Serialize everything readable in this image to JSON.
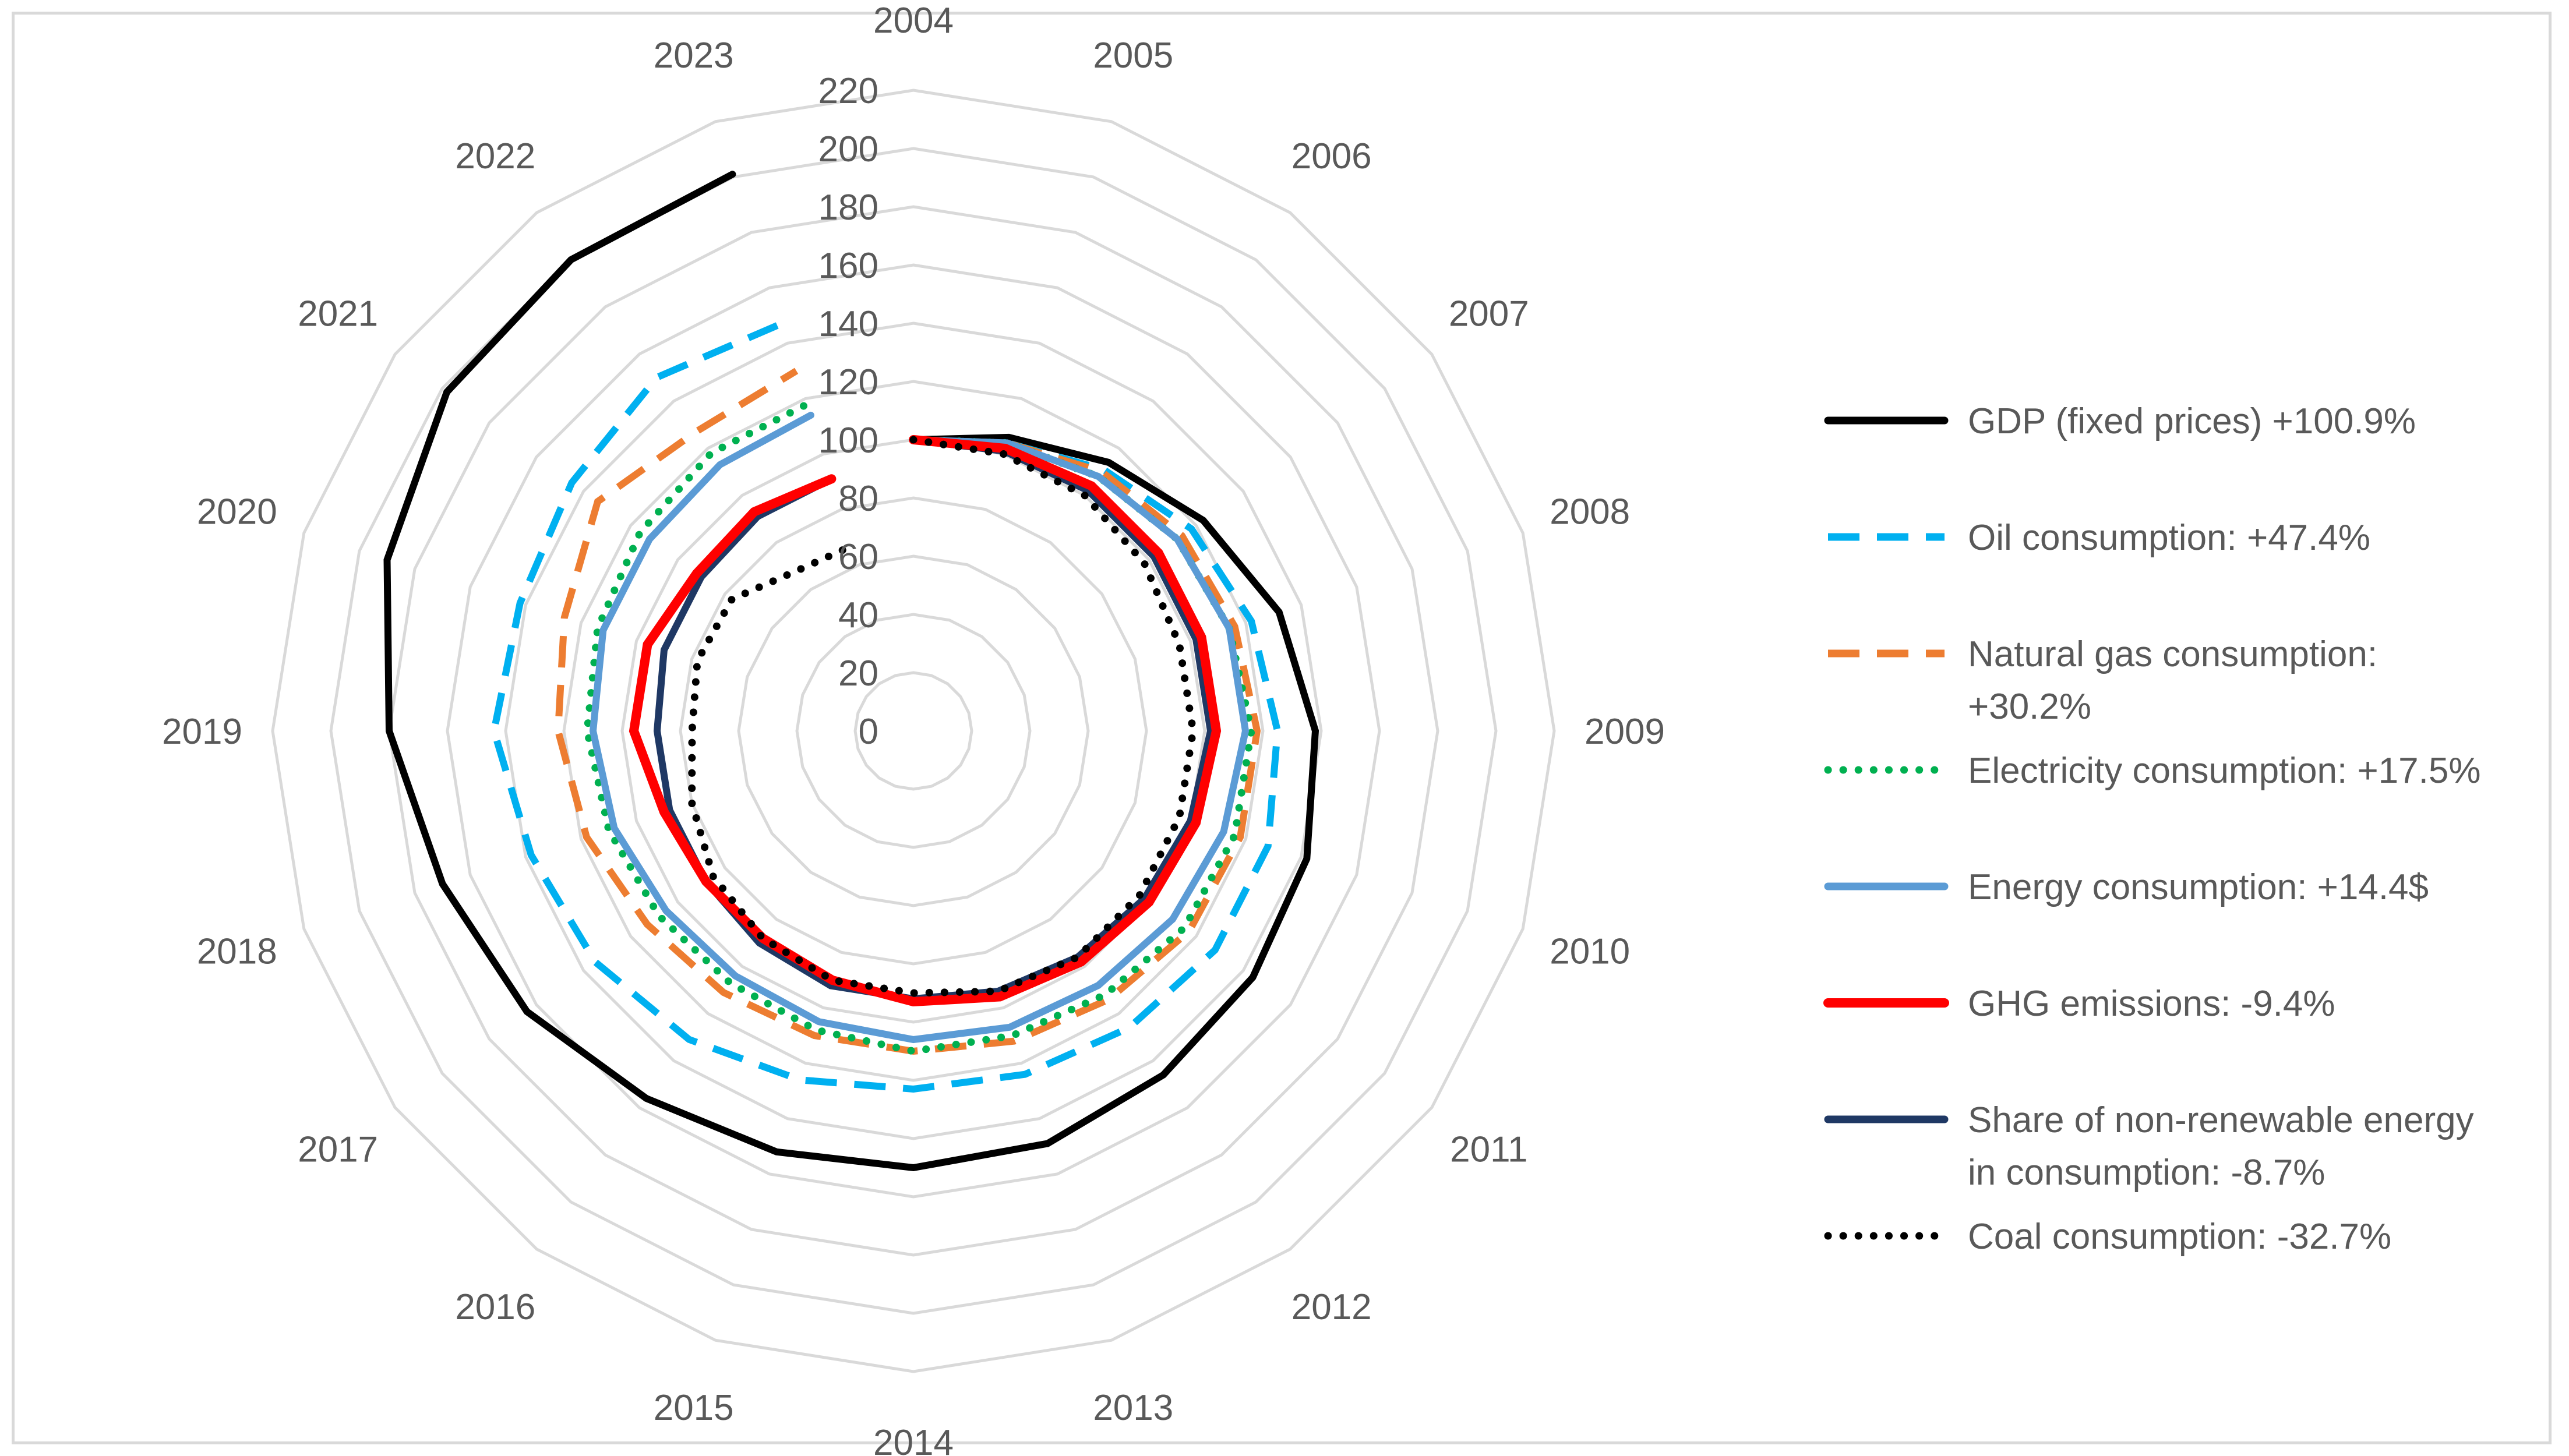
{
  "chart_data": {
    "type": "radar",
    "title": "",
    "categories": [
      "2004",
      "2005",
      "2006",
      "2007",
      "2008",
      "2009",
      "2010",
      "2011",
      "2012",
      "2013",
      "2014",
      "2015",
      "2016",
      "2017",
      "2018",
      "2019",
      "2020",
      "2021",
      "2022",
      "2023"
    ],
    "radial_axis": {
      "min": 0,
      "max": 220,
      "step": 20,
      "ticks": [
        "0",
        "20",
        "40",
        "60",
        "80",
        "100",
        "120",
        "140",
        "160",
        "180",
        "200",
        "220"
      ]
    },
    "series": [
      {
        "name": "GDP (fixed prices)",
        "label": "GDP (fixed prices) +100.9%",
        "color": "#000000",
        "dash": "solid",
        "values": [
          100,
          106,
          114,
          123,
          132,
          138,
          142,
          144,
          146,
          149,
          150,
          152,
          156,
          164,
          170,
          180,
          190,
          198,
          200,
          201
        ]
      },
      {
        "name": "Oil consumption",
        "label": "Oil consumption:  +47.4%",
        "color": "#00b0f0",
        "dash": "dashed",
        "values": [
          100,
          104,
          111,
          118,
          122,
          125,
          128,
          128,
          126,
          124,
          123,
          126,
          131,
          135,
          138,
          144,
          142,
          145,
          150,
          147
        ]
      },
      {
        "name": "Natural gas consumption",
        "label": "Natural gas consumption:",
        "label2": "+30.2%",
        "color": "#ed7d31",
        "dash": "dashed",
        "values": [
          100,
          104,
          110,
          114,
          116,
          118,
          118,
          117,
          114,
          112,
          110,
          110,
          111,
          113,
          118,
          122,
          126,
          134,
          127,
          130
        ]
      },
      {
        "name": "Electricity consumption",
        "label": "Electricity consumption: +17.5%",
        "color": "#00b050",
        "dash": "dotted",
        "values": [
          100,
          104,
          108,
          112,
          114,
          116,
          116,
          115,
          112,
          110,
          110,
          108,
          107,
          108,
          110,
          112,
          114,
          116,
          118,
          118
        ]
      },
      {
        "name": "Energy consumption",
        "label": "Energy consumption: +14.4$",
        "color": "#5b9bd5",
        "dash": "solid",
        "values": [
          100,
          104,
          108,
          112,
          114,
          114,
          112,
          110,
          108,
          107,
          106,
          105,
          104,
          105,
          108,
          110,
          112,
          112,
          113,
          114
        ]
      },
      {
        "name": "GHG emissions",
        "label": "GHG emissions: -9.4%",
        "color": "#ff0000",
        "dash": "solid",
        "values": [
          100,
          102,
          104,
          104,
          104,
          104,
          102,
          100,
          98,
          96,
          93,
          90,
          88,
          88,
          90,
          96,
          96,
          92,
          93,
          91
        ]
      },
      {
        "name": "Share of non-renewable energy in consumption",
        "label": "Share of non-renewable energy",
        "label2": "in consumption: -8.7%",
        "color": "#1f3864",
        "dash": "solid",
        "values": [
          100,
          101,
          102,
          102,
          102,
          102,
          100,
          98,
          96,
          94,
          92,
          92,
          90,
          88,
          88,
          88,
          90,
          90,
          91,
          91
        ]
      },
      {
        "name": "Coal consumption",
        "label": "Coal consumption: -32.7%",
        "color": "#000000",
        "dash": "dotted",
        "values": [
          100,
          100,
          100,
          98,
          96,
          96,
          96,
          96,
          96,
          94,
          90,
          90,
          88,
          85,
          80,
          76,
          78,
          77,
          68,
          67
        ]
      }
    ]
  }
}
